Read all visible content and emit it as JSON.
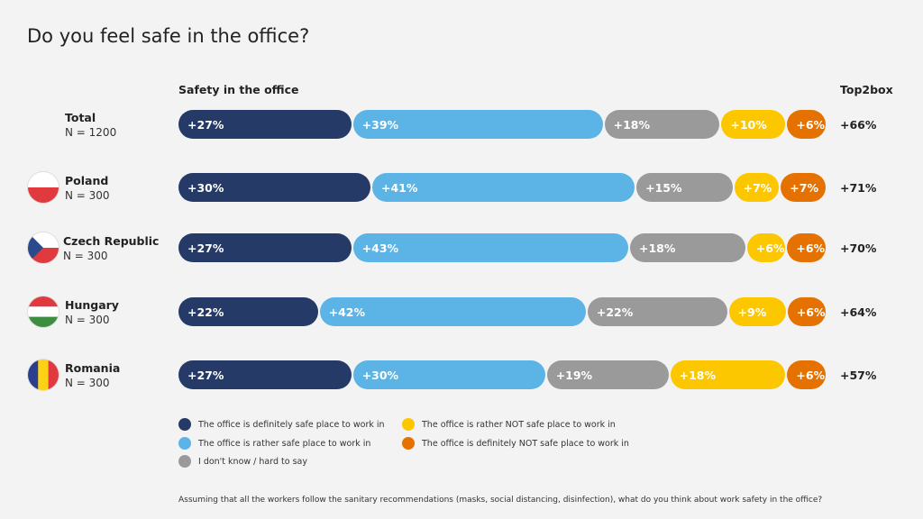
{
  "title": "Do you feel safe in the office?",
  "column_headers": {
    "bars": "Safety in the office",
    "top2box": "Top2box"
  },
  "colors": {
    "definitely_safe": "#263a67",
    "rather_safe": "#5cb3e6",
    "dont_know": "#9a9a9a",
    "rather_not_safe": "#fdc700",
    "definitely_not_safe": "#e57200"
  },
  "chart_data": {
    "type": "bar",
    "orientation": "horizontal",
    "stacked": true,
    "categories": [
      "Total",
      "Poland",
      "Czech Republic",
      "Hungary",
      "Romania"
    ],
    "sample_sizes": [
      "N = 1200",
      "N = 300",
      "N = 300",
      "N = 300",
      "N = 300"
    ],
    "flags": [
      "",
      "poland-flag-icon",
      "czech-flag-icon",
      "hungary-flag-icon",
      "romania-flag-icon"
    ],
    "series": [
      {
        "name": "The office is definitely safe place to work in",
        "key": "definitely_safe",
        "values": [
          27,
          30,
          27,
          22,
          27
        ],
        "labels": [
          "+27%",
          "+30%",
          "+27%",
          "+22%",
          "+27%"
        ]
      },
      {
        "name": "The office is rather safe place to work in",
        "key": "rather_safe",
        "values": [
          39,
          41,
          43,
          42,
          30
        ],
        "labels": [
          "+39%",
          "+41%",
          "+43%",
          "+42%",
          "+30%"
        ]
      },
      {
        "name": "I don't know / hard to say",
        "key": "dont_know",
        "values": [
          18,
          15,
          18,
          22,
          19
        ],
        "labels": [
          "+18%",
          "+15%",
          "+18%",
          "+22%",
          "+19%"
        ]
      },
      {
        "name": "The office is rather NOT safe place to work in",
        "key": "rather_not_safe",
        "values": [
          10,
          7,
          6,
          9,
          18
        ],
        "labels": [
          "+10%",
          "+7%",
          "+6%",
          "+9%",
          "+18%"
        ]
      },
      {
        "name": "The office is definitely NOT safe place to work in",
        "key": "definitely_not_safe",
        "values": [
          6,
          7,
          6,
          6,
          6
        ],
        "labels": [
          "+6%",
          "+7%",
          "+6%",
          "+6%",
          "+6%"
        ]
      }
    ],
    "top2box": [
      "+66%",
      "+71%",
      "+70%",
      "+64%",
      "+57%"
    ]
  },
  "legend": [
    {
      "label": "The office is definitely safe place to work in",
      "color": "#263a67"
    },
    {
      "label": "The office is rather safe place to work in",
      "color": "#5cb3e6"
    },
    {
      "label": "I don't know / hard to say",
      "color": "#9a9a9a"
    },
    {
      "label": "The office is rather NOT safe place to work in",
      "color": "#fdc700"
    },
    {
      "label": "The office is definitely NOT safe place to work in",
      "color": "#e57200"
    }
  ],
  "footnote": "Assuming that all the workers follow the sanitary recommendations (masks, social distancing, disinfection), what do you think about work safety in the office?"
}
